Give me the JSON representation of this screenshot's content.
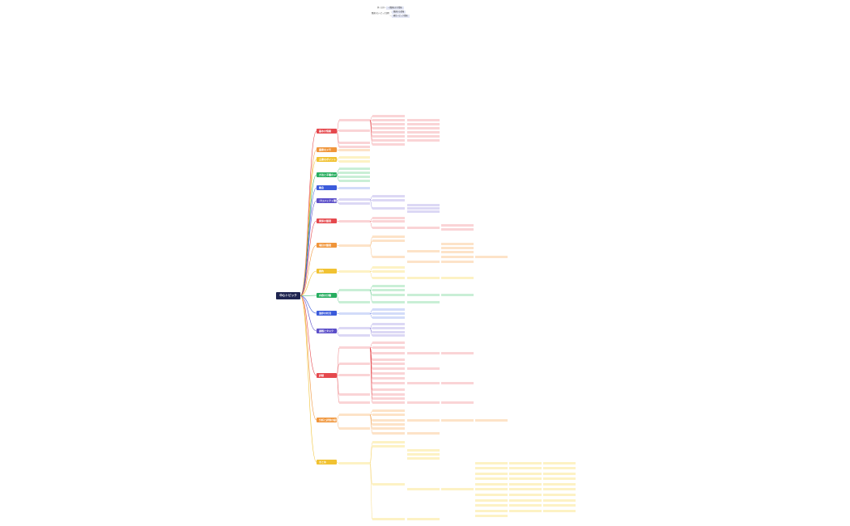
{
  "root": {
    "label": "中心トピック"
  },
  "legend": {
    "a": "多くの分…",
    "b": "…関連を示す情報",
    "c": "関連するトピック説明",
    "d": "関連する情報",
    "e": "補足トピック情報"
  },
  "colors": {
    "red": "#e5484d",
    "orange": "#f0953a",
    "yellow": "#f1c232",
    "green": "#27ae60",
    "blue": "#3b5bdb",
    "indigo": "#5c4fc9",
    "red_bg": "#fad4d6",
    "orange_bg": "#fde3c8",
    "yellow_bg": "#fdf2c4",
    "green_bg": "#c9efd6",
    "blue_bg": "#d2dcf9",
    "indigo_bg": "#dcd8f5"
  },
  "branches": [
    {
      "id": "b1",
      "label": "基本の情報",
      "color": "red"
    },
    {
      "id": "b2",
      "label": "重要なメモ",
      "color": "orange"
    },
    {
      "id": "b3",
      "label": "主要なポイント",
      "color": "yellow"
    },
    {
      "id": "b4",
      "label": "方法と手順のメモ",
      "color": "green"
    },
    {
      "id": "b5",
      "label": "概念",
      "color": "blue"
    },
    {
      "id": "b6",
      "label": "プロジェクト管理",
      "color": "indigo"
    },
    {
      "id": "b7",
      "label": "関係の整理",
      "color": "red"
    },
    {
      "id": "b8",
      "label": "項目の整理",
      "color": "orange"
    },
    {
      "id": "b9",
      "label": "要約",
      "color": "yellow"
    },
    {
      "id": "b10",
      "label": "内容の分類",
      "color": "green"
    },
    {
      "id": "b11",
      "label": "進捗の状況",
      "color": "blue"
    },
    {
      "id": "b12",
      "label": "課題とタスク",
      "color": "indigo"
    },
    {
      "id": "b13",
      "label": "詳細",
      "color": "red"
    },
    {
      "id": "b14",
      "label": "分析と評価の結果",
      "color": "orange"
    },
    {
      "id": "b15",
      "label": "まとめ",
      "color": "yellow"
    }
  ]
}
